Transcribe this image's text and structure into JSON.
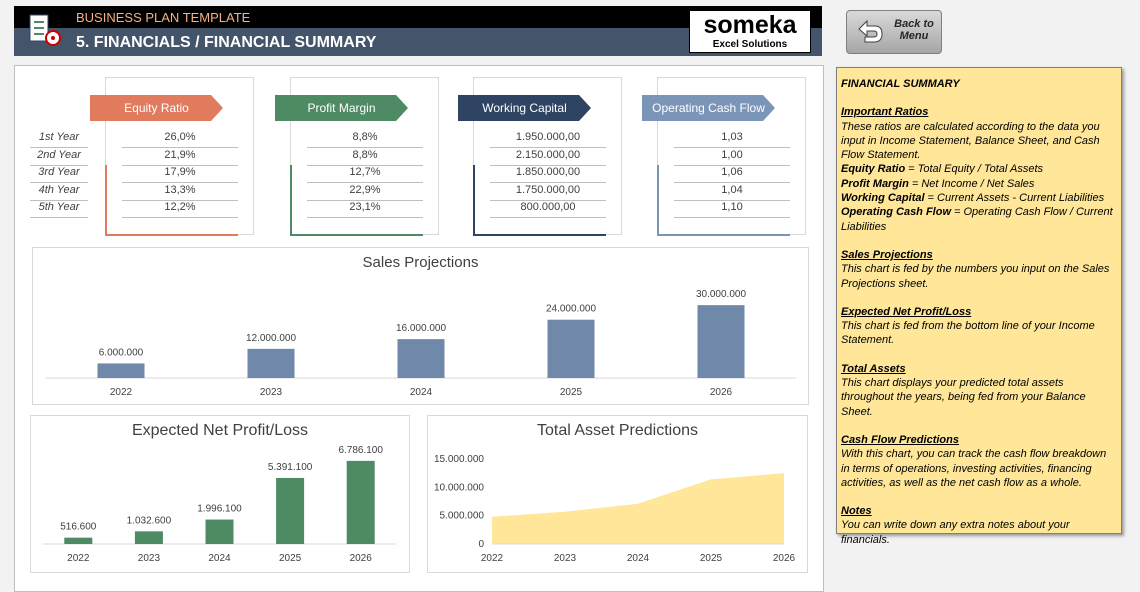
{
  "header": {
    "template": "BUSINESS PLAN TEMPLATE",
    "title": "5. FINANCIALS / FINANCIAL SUMMARY",
    "logo": "someka",
    "logo_sub": "Excel Solutions",
    "back_button": "Back to Menu"
  },
  "ratios": {
    "years": [
      "1st Year",
      "2nd Year",
      "3rd Year",
      "4th Year",
      "5th Year"
    ],
    "columns": [
      {
        "name": "Equity Ratio",
        "color": "#e07b5e",
        "values": [
          "26,0%",
          "21,9%",
          "17,9%",
          "13,3%",
          "12,2%"
        ]
      },
      {
        "name": "Profit Margin",
        "color": "#4e8a63",
        "values": [
          "8,8%",
          "8,8%",
          "12,7%",
          "22,9%",
          "23,1%"
        ]
      },
      {
        "name": "Working Capital",
        "color": "#2f4463",
        "values": [
          "1.950.000,00",
          "2.150.000,00",
          "1.850.000,00",
          "1.750.000,00",
          "800.000,00"
        ]
      },
      {
        "name": "Operating Cash Flow",
        "color": "#7b95b8",
        "values": [
          "1,03",
          "1,00",
          "1,06",
          "1,04",
          "1,10"
        ]
      }
    ]
  },
  "chart_data": [
    {
      "type": "bar",
      "title": "Sales Projections",
      "categories": [
        "2022",
        "2023",
        "2024",
        "2025",
        "2026"
      ],
      "values": [
        6000000,
        12000000,
        16000000,
        24000000,
        30000000
      ],
      "value_labels": [
        "6.000.000",
        "12.000.000",
        "16.000.000",
        "24.000.000",
        "30.000.000"
      ],
      "color": "#7088aa",
      "ylim": [
        0,
        35000000
      ]
    },
    {
      "type": "bar",
      "title": "Expected Net Profit/Loss",
      "categories": [
        "2022",
        "2023",
        "2024",
        "2025",
        "2026"
      ],
      "values": [
        516600,
        1032600,
        1996100,
        5391100,
        6786100
      ],
      "value_labels": [
        "516.600",
        "1.032.600",
        "1.996.100",
        "5.391.100",
        "6.786.100"
      ],
      "color": "#4e8a63",
      "ylim": [
        0,
        8000000
      ]
    },
    {
      "type": "area",
      "title": "Total Asset Predictions",
      "categories": [
        "2022",
        "2023",
        "2024",
        "2025",
        "2026"
      ],
      "values": [
        4800000,
        5700000,
        7100000,
        11400000,
        12500000
      ],
      "color": "#ffe699",
      "ylim": [
        0,
        15000000
      ],
      "yticks": [
        0,
        {
          "value": 5000000,
          "label": "5.000.000"
        },
        {
          "value": 10000000,
          "label": "10.000.000"
        },
        {
          "value": 15000000,
          "label": "15.000.000"
        }
      ]
    }
  ],
  "notes": {
    "title": "FINANCIAL SUMMARY",
    "sections": [
      {
        "heading": "Important Ratios",
        "text": "These ratios are calculated according to the data you input in Income Statement, Balance Sheet, and Cash Flow Statement.",
        "items": [
          {
            "term": "Equity Ratio",
            "definition": "= Total Equity / Total Assets"
          },
          {
            "term": "Profit Margin",
            "definition": "= Net Income / Net Sales"
          },
          {
            "term": "Working Capital",
            "definition": "= Current Assets - Current Liabilities"
          },
          {
            "term": "Operating Cash Flow",
            "definition": "= Operating Cash Flow / Current Liabilities"
          }
        ]
      },
      {
        "heading": "Sales Projections",
        "text": "This chart is fed by the numbers you input on the Sales Projections sheet."
      },
      {
        "heading": "Expected Net Profit/Loss",
        "text": "This chart is fed from the bottom line of your Income Statement."
      },
      {
        "heading": "Total Assets",
        "text": "This chart displays your predicted total assets throughout the years, being fed from your Balance Sheet."
      },
      {
        "heading": "Cash Flow Predictions",
        "text": "With this chart, you can track the cash flow breakdown in terms of operations, investing activities, financing activities, as well as the net cash flow as a whole."
      },
      {
        "heading": "Notes",
        "text": "You can write down any extra notes about your financials."
      }
    ]
  }
}
